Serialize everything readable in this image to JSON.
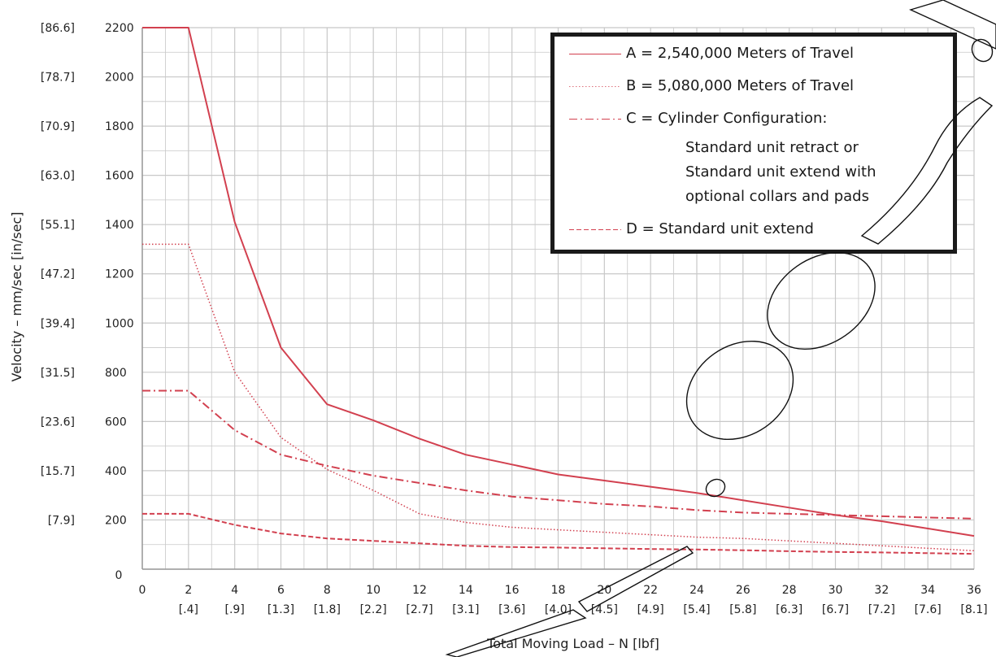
{
  "colors": {
    "series": "#d2404f",
    "grid": "#c8c8c8",
    "axis": "#999999",
    "legend_border": "#1a1a1a",
    "text": "#222222"
  },
  "chart_data": {
    "type": "line",
    "xlabel": "Total Moving Load – N [lbf]",
    "ylabel": "Velocity – mm/sec [in/sec]",
    "xlim": [
      0,
      36
    ],
    "ylim": [
      0,
      2200
    ],
    "grid": true,
    "legend_position": "top-right",
    "x_ticks": [
      {
        "value": 0,
        "label": "0",
        "sub": ""
      },
      {
        "value": 2,
        "label": "2",
        "sub": "[.4]"
      },
      {
        "value": 4,
        "label": "4",
        "sub": "[.9]"
      },
      {
        "value": 6,
        "label": "6",
        "sub": "[1.3]"
      },
      {
        "value": 8,
        "label": "8",
        "sub": "[1.8]"
      },
      {
        "value": 10,
        "label": "10",
        "sub": "[2.2]"
      },
      {
        "value": 12,
        "label": "12",
        "sub": "[2.7]"
      },
      {
        "value": 14,
        "label": "14",
        "sub": "[3.1]"
      },
      {
        "value": 16,
        "label": "16",
        "sub": "[3.6]"
      },
      {
        "value": 18,
        "label": "18",
        "sub": "[4.0]"
      },
      {
        "value": 20,
        "label": "20",
        "sub": "[4.5]"
      },
      {
        "value": 22,
        "label": "22",
        "sub": "[4.9]"
      },
      {
        "value": 24,
        "label": "24",
        "sub": "[5.4]"
      },
      {
        "value": 26,
        "label": "26",
        "sub": "[5.8]"
      },
      {
        "value": 28,
        "label": "28",
        "sub": "[6.3]"
      },
      {
        "value": 30,
        "label": "30",
        "sub": "[6.7]"
      },
      {
        "value": 32,
        "label": "32",
        "sub": "[7.2]"
      },
      {
        "value": 34,
        "label": "34",
        "sub": "[7.6]"
      },
      {
        "value": 36,
        "label": "36",
        "sub": "[8.1]"
      }
    ],
    "y_ticks": [
      {
        "value": 0,
        "label": "0",
        "sub": ""
      },
      {
        "value": 200,
        "label": "200",
        "sub": "[7.9]"
      },
      {
        "value": 400,
        "label": "400",
        "sub": "[15.7]"
      },
      {
        "value": 600,
        "label": "600",
        "sub": "[23.6]"
      },
      {
        "value": 800,
        "label": "800",
        "sub": "[31.5]"
      },
      {
        "value": 1000,
        "label": "1000",
        "sub": "[39.4]"
      },
      {
        "value": 1200,
        "label": "1200",
        "sub": "[47.2]"
      },
      {
        "value": 1400,
        "label": "1400",
        "sub": "[55.1]"
      },
      {
        "value": 1600,
        "label": "1600",
        "sub": "[63.0]"
      },
      {
        "value": 1800,
        "label": "1800",
        "sub": "[70.9]"
      },
      {
        "value": 2000,
        "label": "2000",
        "sub": "[78.7]"
      },
      {
        "value": 2200,
        "label": "2200",
        "sub": "[86.6]"
      }
    ],
    "series": [
      {
        "key": "A",
        "style": "solid",
        "points": [
          [
            0,
            2200
          ],
          [
            2,
            2200
          ],
          [
            4,
            1410
          ],
          [
            6,
            900
          ],
          [
            8,
            670
          ],
          [
            10,
            605
          ],
          [
            12,
            530
          ],
          [
            14,
            465
          ],
          [
            16,
            425
          ],
          [
            18,
            385
          ],
          [
            20,
            360
          ],
          [
            22,
            335
          ],
          [
            24,
            310
          ],
          [
            26,
            280
          ],
          [
            28,
            250
          ],
          [
            30,
            220
          ],
          [
            32,
            195
          ],
          [
            34,
            165
          ],
          [
            36,
            135
          ]
        ]
      },
      {
        "key": "B",
        "style": "dotted",
        "points": [
          [
            0,
            1320
          ],
          [
            2,
            1320
          ],
          [
            4,
            800
          ],
          [
            6,
            535
          ],
          [
            8,
            405
          ],
          [
            10,
            320
          ],
          [
            12,
            225
          ],
          [
            14,
            190
          ],
          [
            16,
            170
          ],
          [
            18,
            160
          ],
          [
            20,
            150
          ],
          [
            22,
            140
          ],
          [
            24,
            130
          ],
          [
            26,
            125
          ],
          [
            28,
            115
          ],
          [
            30,
            105
          ],
          [
            32,
            95
          ],
          [
            34,
            85
          ],
          [
            36,
            75
          ]
        ]
      },
      {
        "key": "C",
        "style": "dashdot",
        "points": [
          [
            0,
            725
          ],
          [
            2,
            725
          ],
          [
            4,
            565
          ],
          [
            6,
            465
          ],
          [
            8,
            420
          ],
          [
            10,
            380
          ],
          [
            12,
            350
          ],
          [
            14,
            320
          ],
          [
            16,
            295
          ],
          [
            18,
            280
          ],
          [
            20,
            265
          ],
          [
            22,
            255
          ],
          [
            24,
            240
          ],
          [
            26,
            230
          ],
          [
            28,
            225
          ],
          [
            30,
            220
          ],
          [
            32,
            215
          ],
          [
            34,
            210
          ],
          [
            36,
            205
          ]
        ]
      },
      {
        "key": "D",
        "style": "dashed",
        "points": [
          [
            0,
            225
          ],
          [
            2,
            225
          ],
          [
            4,
            180
          ],
          [
            6,
            145
          ],
          [
            8,
            125
          ],
          [
            10,
            115
          ],
          [
            12,
            105
          ],
          [
            14,
            95
          ],
          [
            16,
            90
          ],
          [
            18,
            88
          ],
          [
            20,
            85
          ],
          [
            22,
            82
          ],
          [
            24,
            80
          ],
          [
            26,
            77
          ],
          [
            28,
            73
          ],
          [
            30,
            70
          ],
          [
            32,
            68
          ],
          [
            34,
            65
          ],
          [
            36,
            62
          ]
        ]
      }
    ]
  },
  "legend": {
    "items": [
      {
        "key": "A",
        "style": "solid",
        "label": "A =  2,540,000 Meters of Travel",
        "continuation": []
      },
      {
        "key": "B",
        "style": "dotted",
        "label": "B =  5,080,000 Meters of Travel",
        "continuation": []
      },
      {
        "key": "C",
        "style": "dashdot",
        "label": "C =  Cylinder Configuration:",
        "continuation": [
          "Standard unit retract or",
          "Standard unit extend with",
          "optional collars and pads"
        ]
      },
      {
        "key": "D",
        "style": "dashed",
        "label": "D =  Standard unit extend",
        "continuation": []
      }
    ]
  }
}
